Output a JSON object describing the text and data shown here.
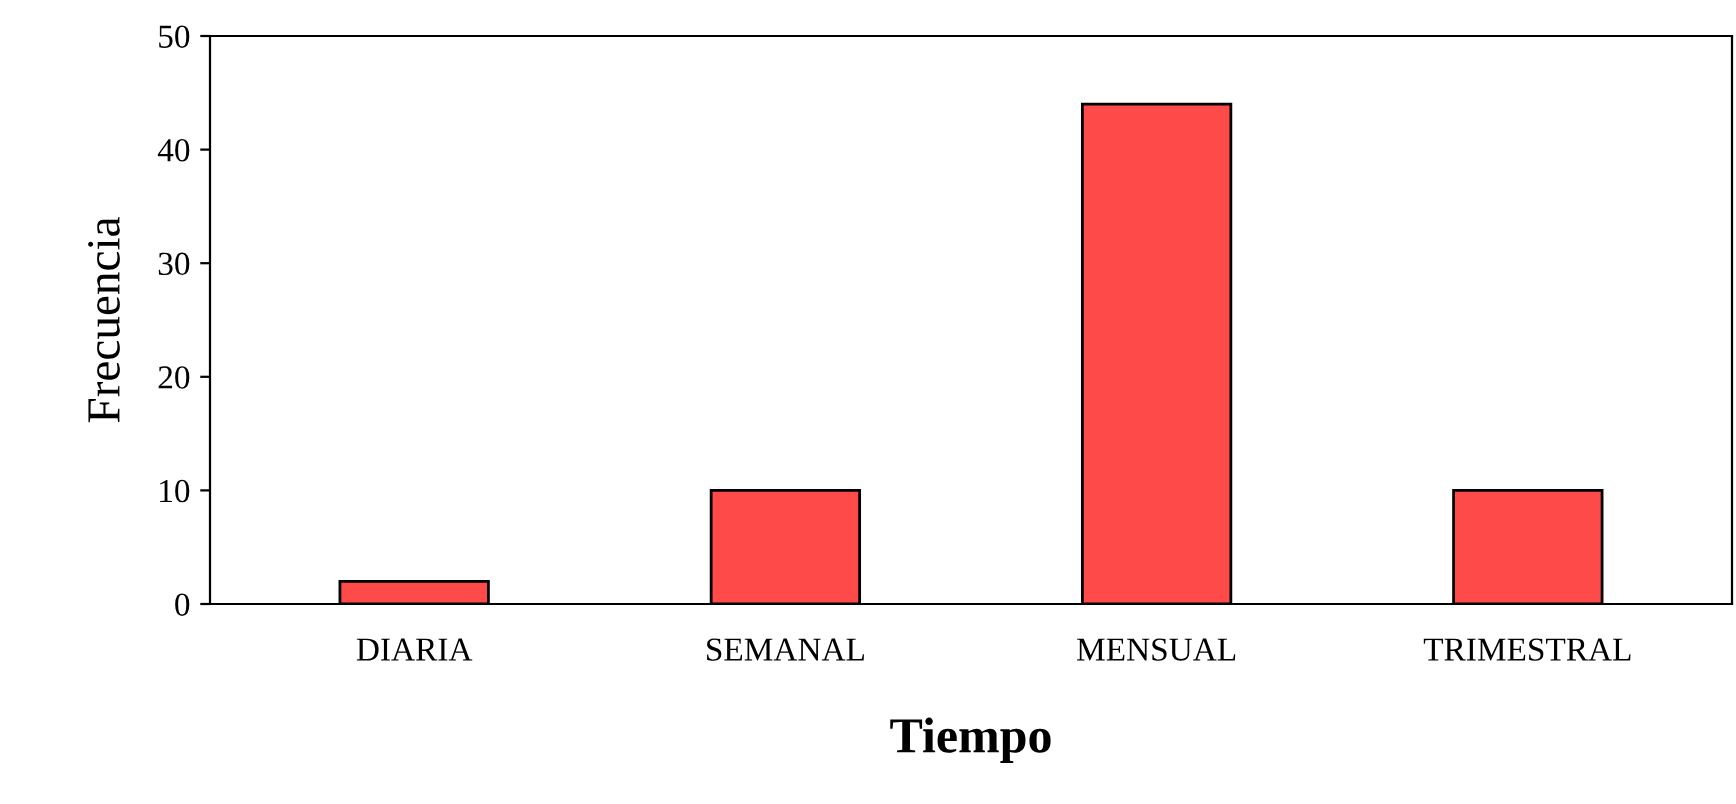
{
  "chart_data": {
    "type": "bar",
    "xlabel": "Tiempo",
    "ylabel": "Frecuencia",
    "categories": [
      "DIARIA",
      "SEMANAL",
      "MENSUAL",
      "TRIMESTRAL"
    ],
    "values": [
      2,
      10,
      44,
      10
    ],
    "color": "#ff4a4a",
    "ylim": [
      0,
      50
    ],
    "yticks": [
      0,
      10,
      20,
      30,
      40,
      50
    ],
    "grid": false
  }
}
